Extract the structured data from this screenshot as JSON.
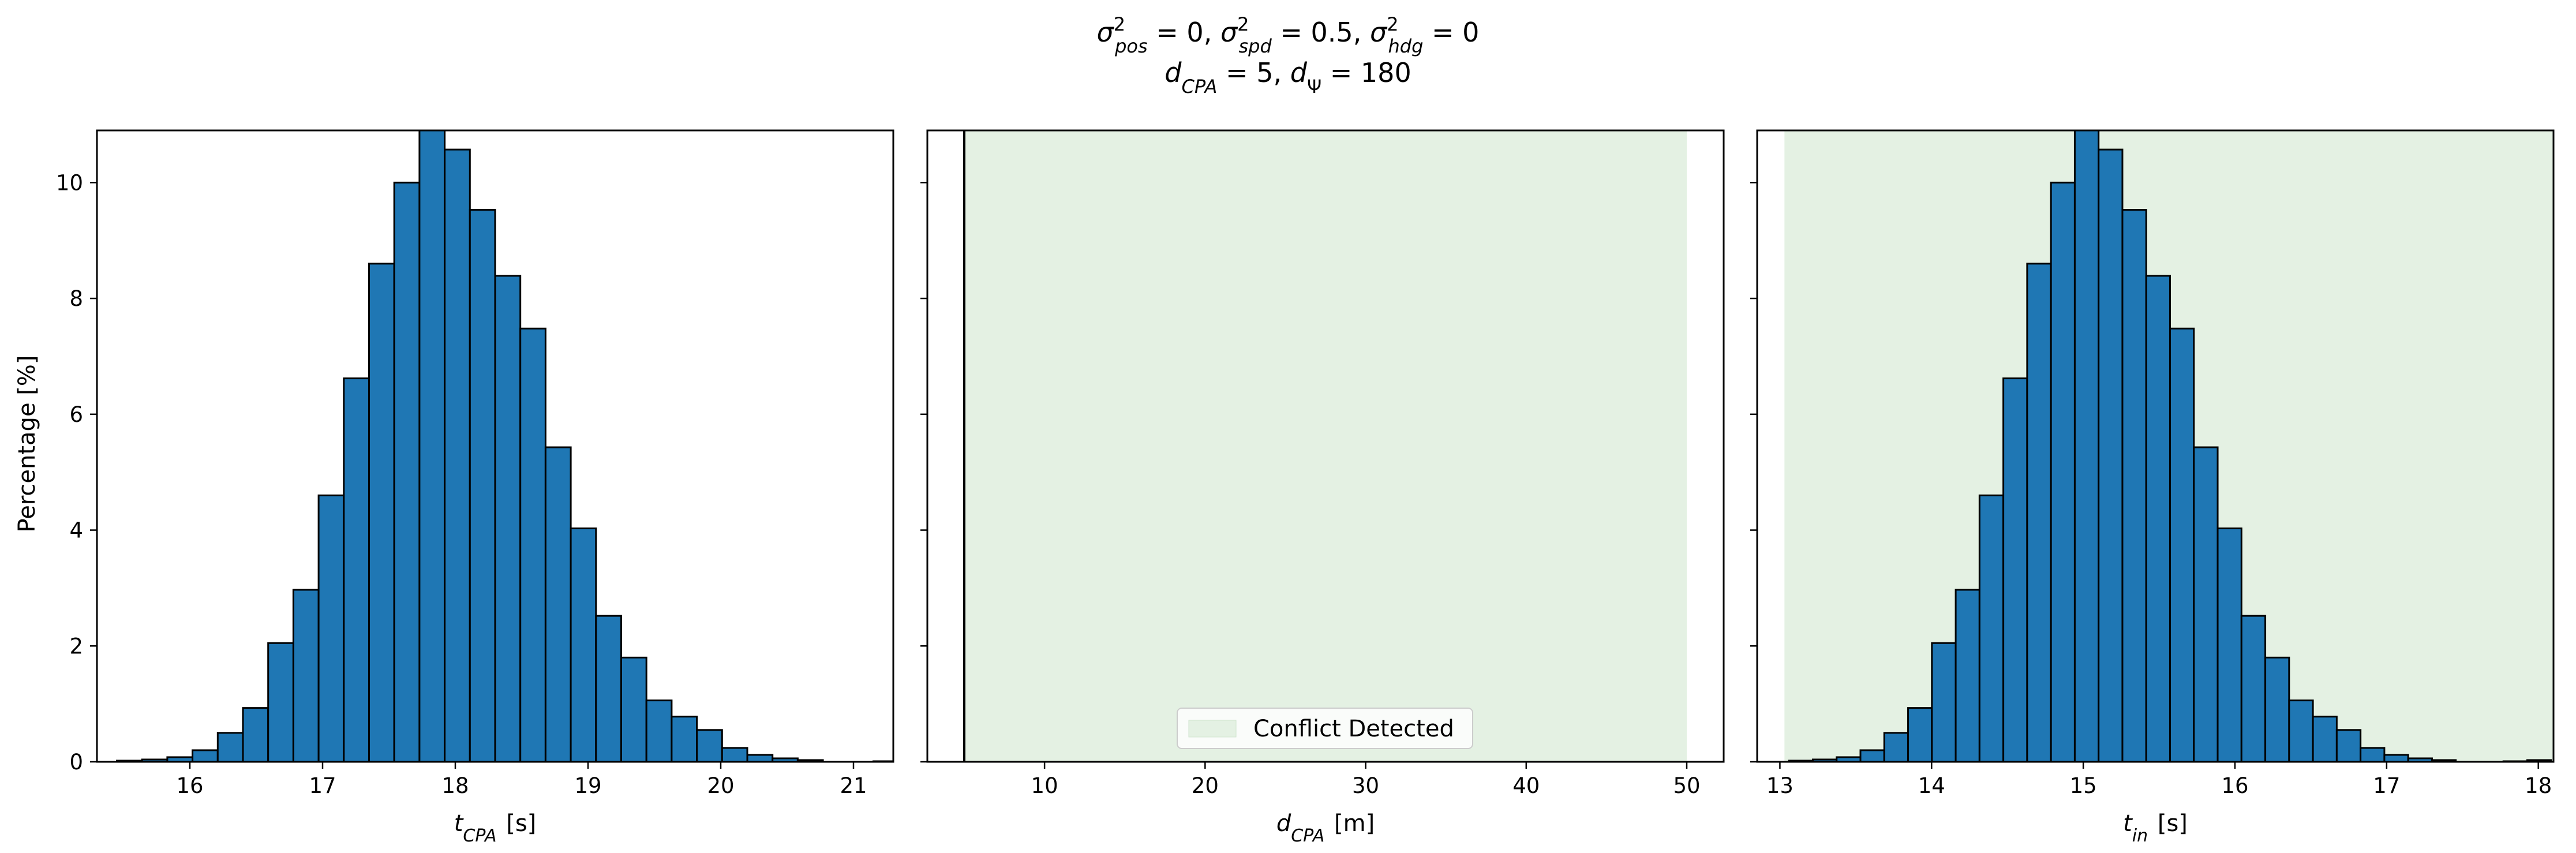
{
  "figure": {
    "title_line1": "σ²pos = 0, σ²spd = 0.5, σ²hdg = 0",
    "title_line2": "dCPA = 5, dΨ = 180"
  },
  "chart_data": [
    {
      "type": "bar",
      "panel": "left",
      "ylabel": "Percentage [%]",
      "xlabel": "tCPA [s]",
      "xlim": [
        15.3,
        21.3
      ],
      "ylim": [
        0,
        10.9
      ],
      "xticks": [
        16,
        17,
        18,
        19,
        20,
        21
      ],
      "yticks": [
        0,
        2,
        4,
        6,
        8,
        10
      ],
      "bin_start": 15.45,
      "bin_width": 0.19,
      "values": [
        0.02,
        0.04,
        0.08,
        0.2,
        0.5,
        0.93,
        2.05,
        2.97,
        4.6,
        6.62,
        8.6,
        10.0,
        10.95,
        10.57,
        9.53,
        8.39,
        7.48,
        5.43,
        4.03,
        2.52,
        1.8,
        1.06,
        0.78,
        0.55,
        0.24,
        0.12,
        0.06,
        0.03,
        0.0,
        0.0,
        0.01,
        0.03
      ],
      "bar_color": "#1f77b4",
      "edge_color": "#000000",
      "grid": false
    },
    {
      "type": "area",
      "panel": "middle",
      "xlabel": "dCPA [m]",
      "xlim": [
        2.7,
        52.3
      ],
      "ylim": [
        0,
        10.9
      ],
      "xticks": [
        10,
        20,
        30,
        40,
        50
      ],
      "yticks": [
        0,
        2,
        4,
        6,
        8,
        10
      ],
      "shade_range": [
        5,
        50
      ],
      "shade_color": "#e4f1e3",
      "vline_x": 5,
      "legend": {
        "label": "Conflict Detected",
        "position": "bottom-center"
      },
      "grid": false
    },
    {
      "type": "bar",
      "panel": "right",
      "xlabel": "tin [s]",
      "xlim": [
        12.85,
        18.1
      ],
      "ylim": [
        0,
        10.9
      ],
      "xticks": [
        13,
        14,
        15,
        16,
        17,
        18
      ],
      "yticks": [
        0,
        2,
        4,
        6,
        8,
        10
      ],
      "bin_start": 13.06,
      "bin_width": 0.157,
      "values": [
        0.02,
        0.04,
        0.08,
        0.2,
        0.5,
        0.93,
        2.05,
        2.97,
        4.6,
        6.62,
        8.6,
        10.0,
        10.95,
        10.57,
        9.53,
        8.39,
        7.48,
        5.43,
        4.03,
        2.52,
        1.8,
        1.06,
        0.78,
        0.55,
        0.24,
        0.12,
        0.06,
        0.03,
        0.0,
        0.0,
        0.01,
        0.03
      ],
      "shade_range": [
        13.03,
        18.1
      ],
      "shade_color": "#e4f1e3",
      "bar_color": "#1f77b4",
      "edge_color": "#000000",
      "grid": false
    }
  ]
}
